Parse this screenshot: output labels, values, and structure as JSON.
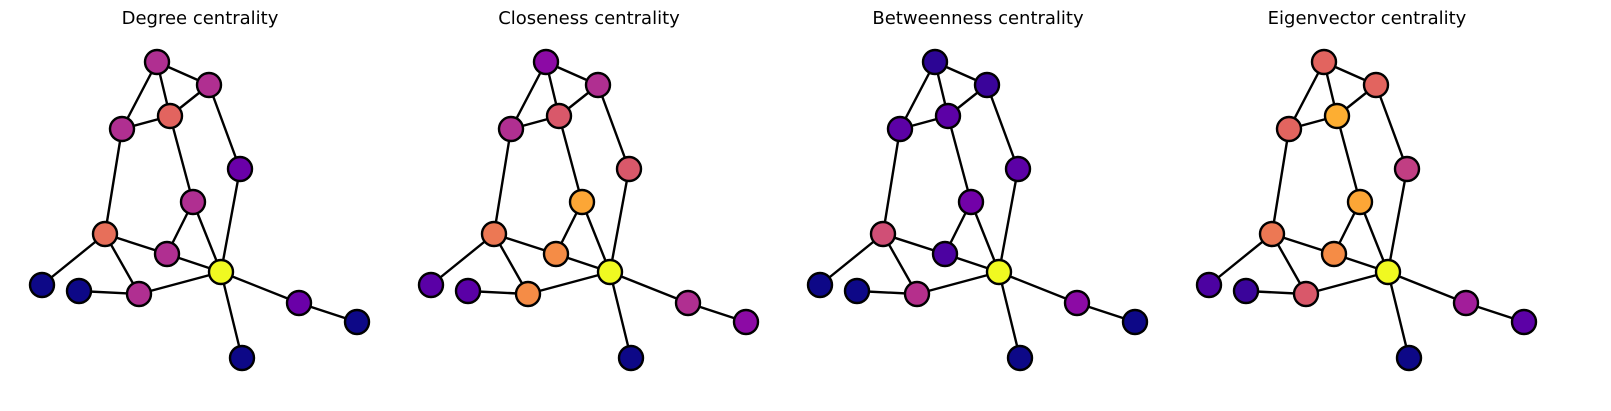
{
  "figure": {
    "panels": [
      {
        "title": "Degree centrality",
        "node_colors": [
          "#b02f91",
          "#b02f91",
          "#e2645f",
          "#b02f91",
          "#6a00a8",
          "#b02f91",
          "#e76f5a",
          "#b02f91",
          "#f0f921",
          "#0d0887",
          "#0d0887",
          "#b02f91",
          "#6a00a8",
          "#0d0887",
          "#0d0887"
        ]
      },
      {
        "title": "Closeness centrality",
        "node_colors": [
          "#8c0aa5",
          "#b02f91",
          "#d9586a",
          "#b02f91",
          "#d9586a",
          "#fca636",
          "#ec7854",
          "#f58c46",
          "#f0f921",
          "#5a00a6",
          "#5a00a6",
          "#f58c46",
          "#b02f91",
          "#8c0aa5",
          "#0d0887"
        ]
      },
      {
        "title": "Betweenness centrality",
        "node_colors": [
          "#2c0594",
          "#3a049a",
          "#5c01a6",
          "#5c01a6",
          "#5c01a6",
          "#7201a8",
          "#d04f76",
          "#4c02a1",
          "#f0f921",
          "#0d0887",
          "#0d0887",
          "#b52f8c",
          "#8c0aa5",
          "#0d0887",
          "#0d0887"
        ]
      },
      {
        "title": "Eigenvector centrality",
        "node_colors": [
          "#e2645f",
          "#e2645f",
          "#fdae32",
          "#e2645f",
          "#c13e83",
          "#fca636",
          "#ec7854",
          "#f58c46",
          "#f0f921",
          "#4c02a1",
          "#3a049a",
          "#d9586a",
          "#a21d9a",
          "#5c01a6",
          "#0d0887"
        ]
      }
    ]
  }
}
